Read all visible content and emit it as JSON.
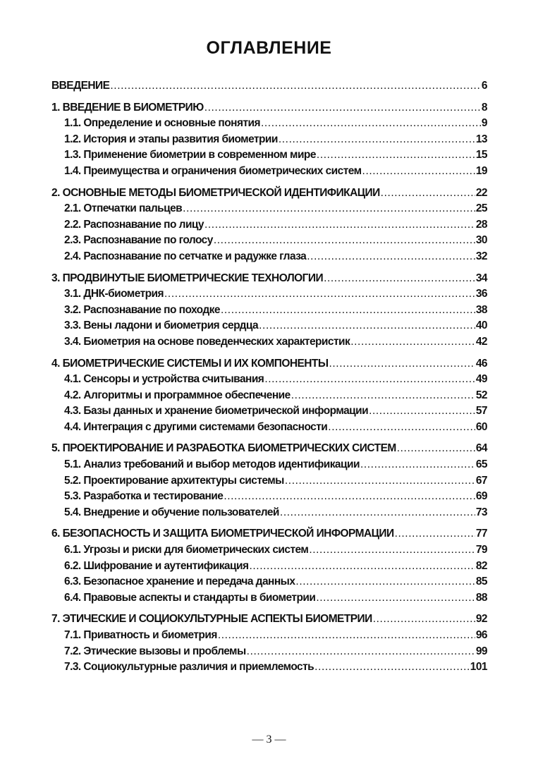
{
  "title": "ОГЛАВЛЕНИЕ",
  "groups": [
    {
      "items": [
        {
          "label": "ВВЕДЕНИЕ",
          "page": "6",
          "level": 1
        }
      ]
    },
    {
      "items": [
        {
          "label": "1. ВВЕДЕНИЕ В БИОМЕТРИЮ",
          "page": "8",
          "level": 1
        },
        {
          "label": "1.1. Определение и основные понятия",
          "page": "9",
          "level": 2
        },
        {
          "label": "1.2. История и этапы развития биометрии",
          "page": "13",
          "level": 2
        },
        {
          "label": "1.3. Применение биометрии в современном мире",
          "page": "15",
          "level": 2
        },
        {
          "label": "1.4. Преимущества и ограничения биометрических систем",
          "page": "19",
          "level": 2
        }
      ]
    },
    {
      "items": [
        {
          "label": "2. ОСНОВНЫЕ МЕТОДЫ БИОМЕТРИЧЕСКОЙ ИДЕНТИФИКАЦИИ",
          "page": "22",
          "level": 1
        },
        {
          "label": "2.1. Отпечатки пальцев",
          "page": "25",
          "level": 2
        },
        {
          "label": "2.2. Распознавание по лицу",
          "page": "28",
          "level": 2
        },
        {
          "label": "2.3. Распознавание по голосу",
          "page": "30",
          "level": 2
        },
        {
          "label": "2.4. Распознавание по сетчатке и радужке глаза",
          "page": "32",
          "level": 2
        }
      ]
    },
    {
      "items": [
        {
          "label": "3. ПРОДВИНУТЫЕ БИОМЕТРИЧЕСКИЕ ТЕХНОЛОГИИ",
          "page": "34",
          "level": 1
        },
        {
          "label": "3.1. ДНК-биометрия",
          "page": "36",
          "level": 2
        },
        {
          "label": "3.2. Распознавание по походке",
          "page": "38",
          "level": 2
        },
        {
          "label": "3.3. Вены ладони и биометрия сердца",
          "page": "40",
          "level": 2
        },
        {
          "label": "3.4. Биометрия на основе поведенческих характеристик",
          "page": "42",
          "level": 2
        }
      ]
    },
    {
      "items": [
        {
          "label": "4. БИОМЕТРИЧЕСКИЕ СИСТЕМЫ И ИХ КОМПОНЕНТЫ",
          "page": "46",
          "level": 1
        },
        {
          "label": "4.1. Сенсоры и устройства считывания",
          "page": "49",
          "level": 2
        },
        {
          "label": "4.2. Алгоритмы и программное обеспечение",
          "page": "52",
          "level": 2
        },
        {
          "label": "4.3. Базы данных и хранение биометрической информации",
          "page": "57",
          "level": 2
        },
        {
          "label": "4.4. Интеграция с другими системами безопасности",
          "page": "60",
          "level": 2
        }
      ]
    },
    {
      "items": [
        {
          "label": "5. ПРОЕКТИРОВАНИЕ И РАЗРАБОТКА БИОМЕТРИЧЕСКИХ СИСТЕМ",
          "page": "64",
          "level": 1
        },
        {
          "label": "5.1. Анализ требований и выбор методов идентификации",
          "page": "65",
          "level": 2
        },
        {
          "label": "5.2. Проектирование архитектуры системы",
          "page": "67",
          "level": 2
        },
        {
          "label": "5.3. Разработка и тестирование",
          "page": "69",
          "level": 2
        },
        {
          "label": "5.4. Внедрение и обучение пользователей",
          "page": "73",
          "level": 2
        }
      ]
    },
    {
      "items": [
        {
          "label": "6. БЕЗОПАСНОСТЬ И ЗАЩИТА БИОМЕТРИЧЕСКОЙ ИНФОРМАЦИИ",
          "page": "77",
          "level": 1
        },
        {
          "label": "6.1. Угрозы и риски для биометрических систем",
          "page": "79",
          "level": 2
        },
        {
          "label": "6.2. Шифрование и аутентификация",
          "page": "82",
          "level": 2
        },
        {
          "label": "6.3. Безопасное хранение и передача данных",
          "page": "85",
          "level": 2
        },
        {
          "label": "6.4. Правовые аспекты и стандарты в биометрии",
          "page": "88",
          "level": 2
        }
      ]
    },
    {
      "items": [
        {
          "label": "7. ЭТИЧЕСКИЕ И СОЦИОКУЛЬТУРНЫЕ АСПЕКТЫ БИОМЕТРИИ",
          "page": "92",
          "level": 1
        },
        {
          "label": "7.1. Приватность и биометрия",
          "page": "96",
          "level": 2
        },
        {
          "label": "7.2. Этические вызовы и проблемы",
          "page": "99",
          "level": 2
        },
        {
          "label": "7.3. Социокультурные различия и приемлемость",
          "page": "101",
          "level": 2
        }
      ]
    }
  ],
  "footer": {
    "page_number": "— 3 —"
  }
}
